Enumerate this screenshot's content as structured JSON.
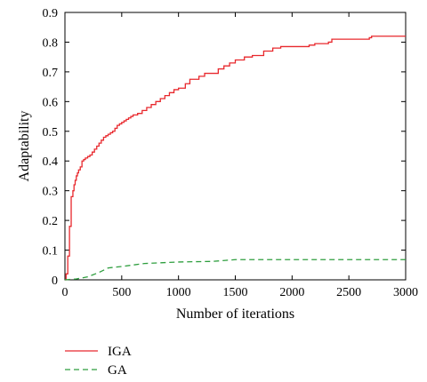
{
  "chart_data": {
    "type": "line",
    "title": "",
    "xlabel": "Number of iterations",
    "ylabel": "Adaptability",
    "xlim": [
      0,
      3000
    ],
    "ylim": [
      0,
      0.9
    ],
    "xticks": [
      0,
      500,
      1000,
      1500,
      2000,
      2500,
      3000
    ],
    "yticks": [
      0,
      0.1,
      0.2,
      0.3,
      0.4,
      0.5,
      0.6,
      0.7,
      0.8,
      0.9
    ],
    "xtick_labels": [
      "0",
      "500",
      "1000",
      "1500",
      "2000",
      "2500",
      "3000"
    ],
    "ytick_labels": [
      "0",
      "0.1",
      "0.2",
      "0.3",
      "0.4",
      "0.5",
      "0.6",
      "0.7",
      "0.8",
      "0.9"
    ],
    "grid": false,
    "legend_position": "below",
    "series": [
      {
        "name": "IGA",
        "color": "#e8282d",
        "style": "solid",
        "step": true,
        "x": [
          0,
          10,
          25,
          40,
          55,
          70,
          80,
          90,
          100,
          110,
          120,
          135,
          150,
          165,
          180,
          200,
          220,
          240,
          260,
          280,
          300,
          320,
          340,
          360,
          380,
          400,
          420,
          440,
          460,
          480,
          500,
          520,
          540,
          560,
          580,
          600,
          640,
          680,
          720,
          760,
          800,
          840,
          880,
          920,
          960,
          1000,
          1060,
          1100,
          1180,
          1230,
          1350,
          1400,
          1450,
          1500,
          1580,
          1650,
          1750,
          1830,
          1900,
          2150,
          2200,
          2320,
          2350,
          2680,
          2700,
          3000
        ],
        "y": [
          0,
          0.02,
          0.08,
          0.18,
          0.28,
          0.3,
          0.32,
          0.335,
          0.35,
          0.36,
          0.37,
          0.38,
          0.4,
          0.405,
          0.41,
          0.415,
          0.42,
          0.43,
          0.44,
          0.45,
          0.46,
          0.47,
          0.48,
          0.485,
          0.49,
          0.495,
          0.5,
          0.51,
          0.52,
          0.525,
          0.53,
          0.535,
          0.54,
          0.545,
          0.55,
          0.555,
          0.56,
          0.57,
          0.58,
          0.59,
          0.6,
          0.61,
          0.62,
          0.63,
          0.64,
          0.645,
          0.66,
          0.675,
          0.685,
          0.695,
          0.71,
          0.72,
          0.73,
          0.74,
          0.75,
          0.755,
          0.77,
          0.78,
          0.785,
          0.79,
          0.795,
          0.8,
          0.81,
          0.815,
          0.82,
          0.82
        ]
      },
      {
        "name": "GA",
        "color": "#2e9e3e",
        "style": "dashed",
        "step": false,
        "x": [
          0,
          100,
          200,
          300,
          380,
          500,
          700,
          1000,
          1300,
          1500,
          2000,
          2500,
          3000
        ],
        "y": [
          0,
          0.003,
          0.01,
          0.025,
          0.04,
          0.045,
          0.055,
          0.06,
          0.062,
          0.068,
          0.068,
          0.068,
          0.068
        ]
      }
    ]
  }
}
